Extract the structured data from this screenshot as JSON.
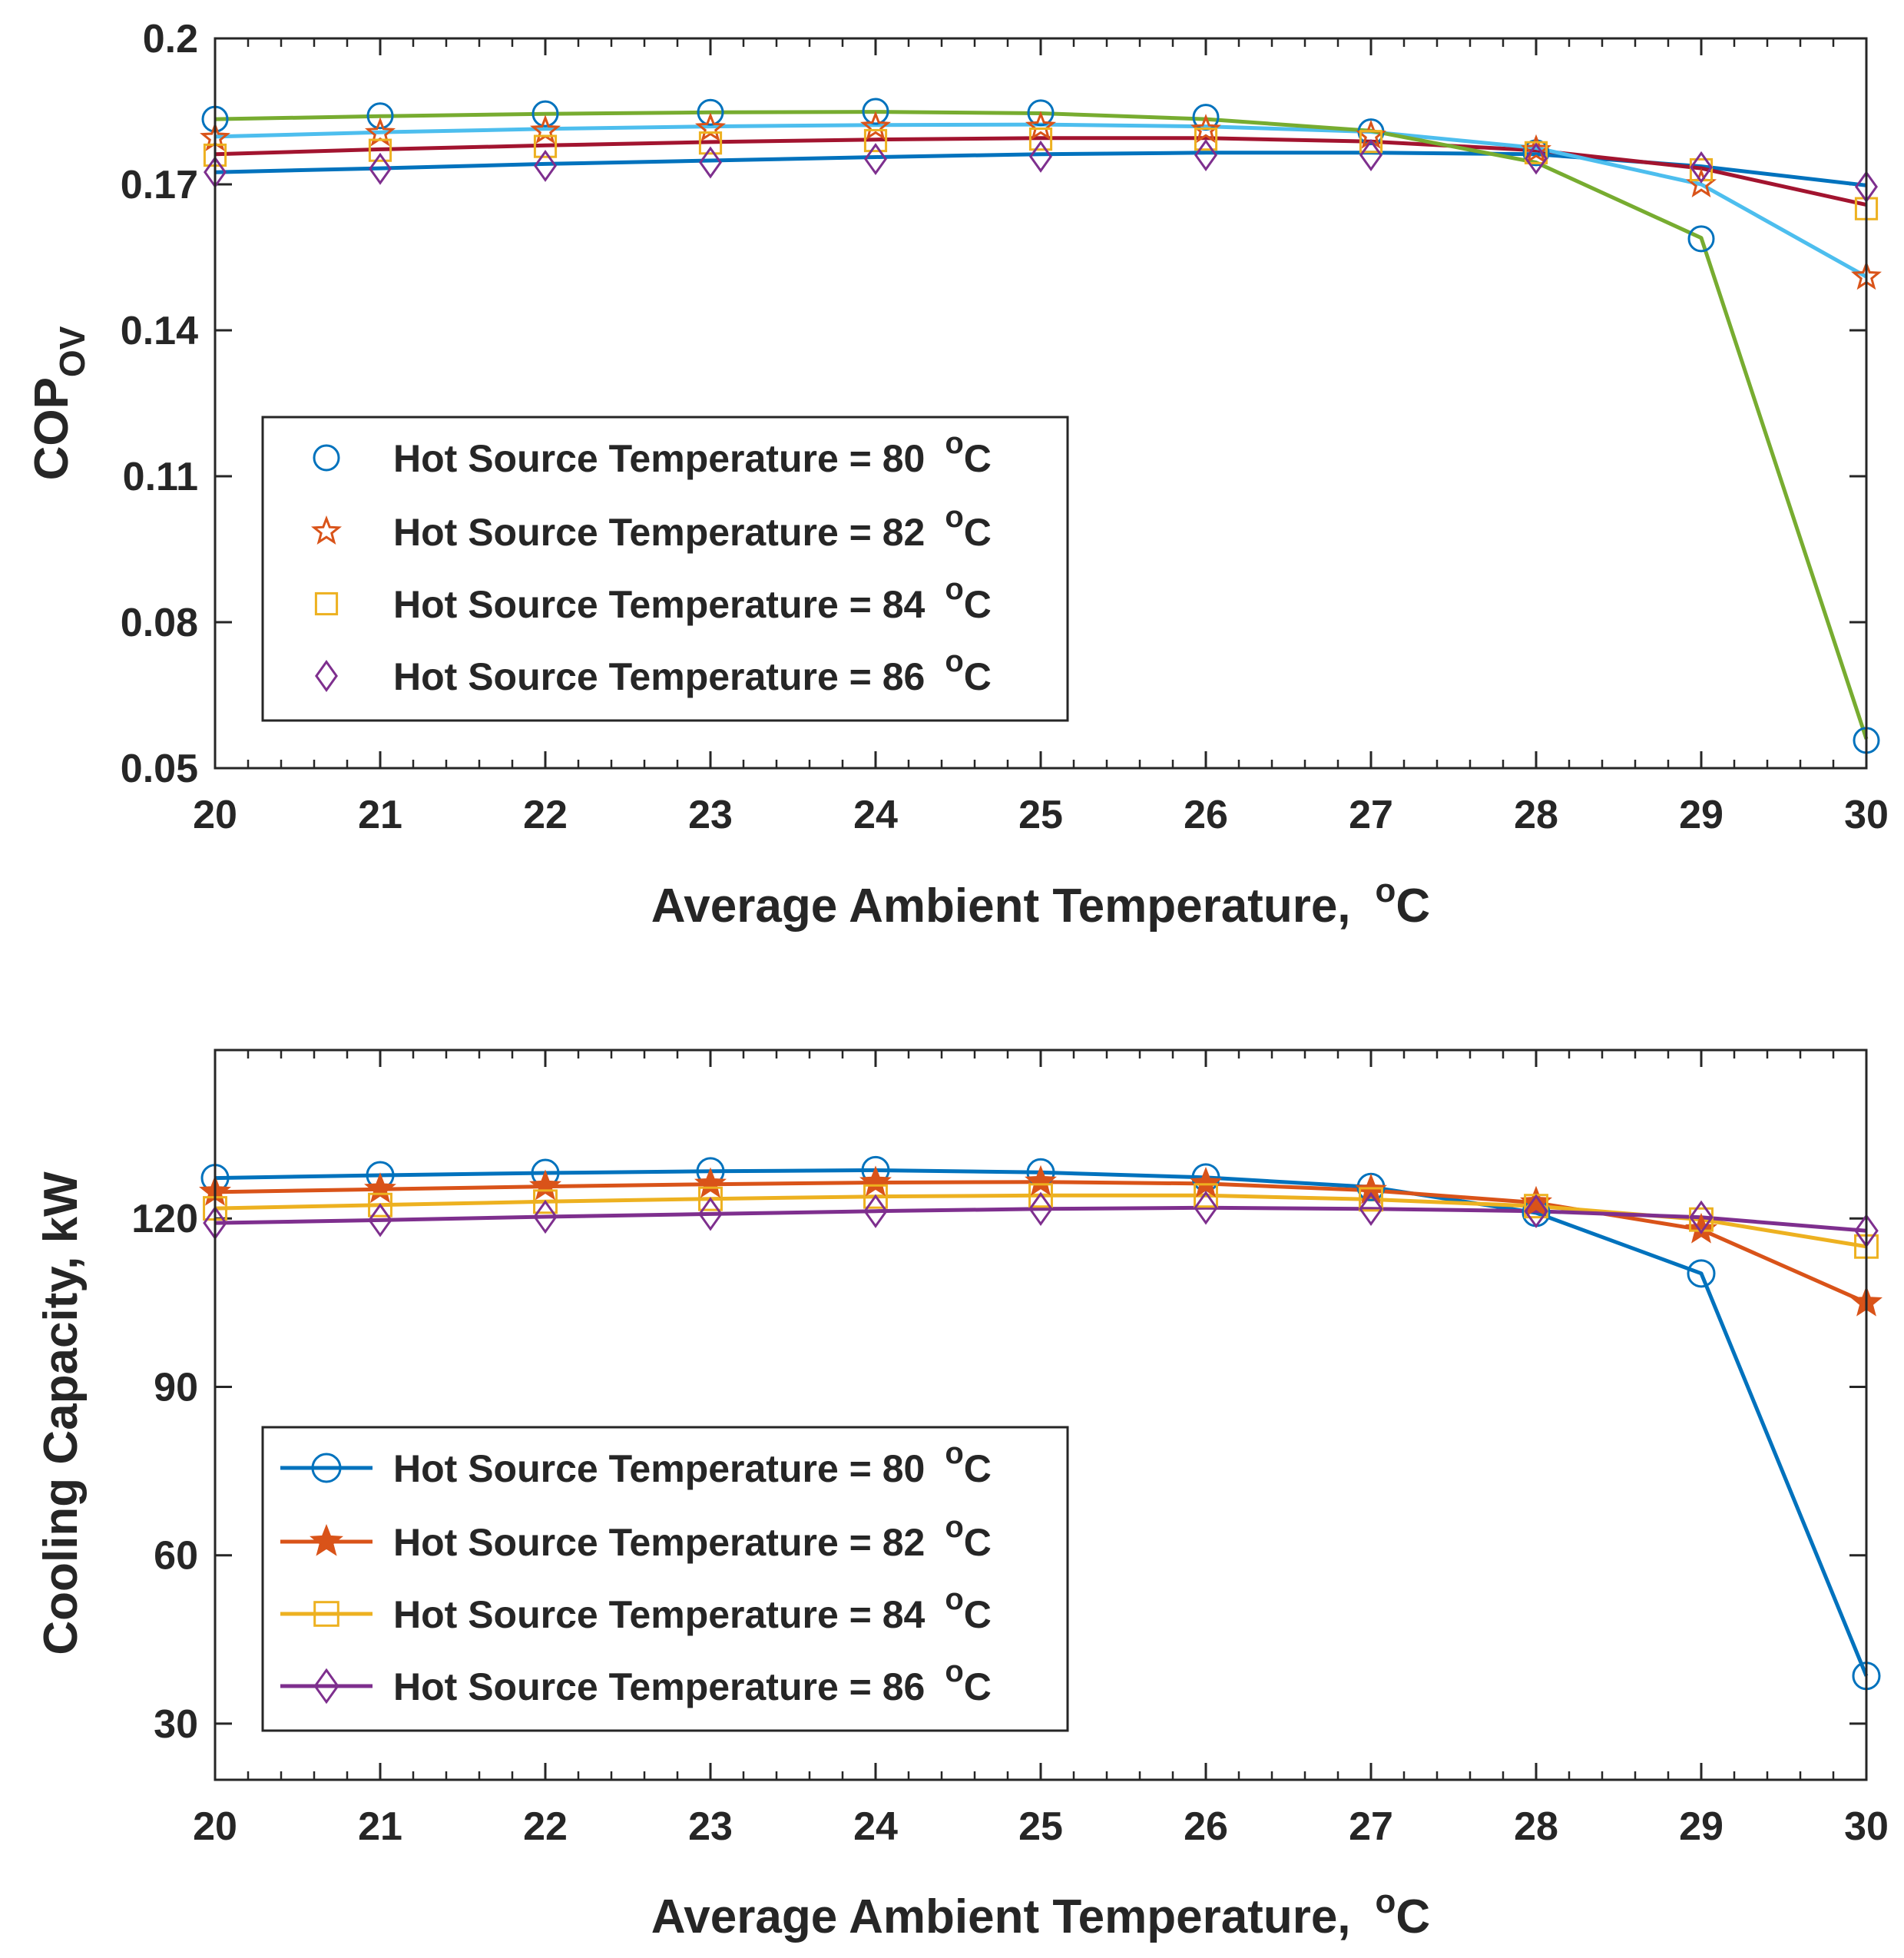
{
  "chart_data": [
    {
      "type": "line",
      "ylabel_main": "COP",
      "ylabel_sub": "OV",
      "xlabel_main": "Average Ambient Temperature,",
      "xlabel_sup": "o",
      "xlabel_unit": "C",
      "xlim": [
        20,
        30
      ],
      "ylim": [
        0.05,
        0.2
      ],
      "x_ticks": [
        "20",
        "21",
        "22",
        "23",
        "24",
        "25",
        "26",
        "27",
        "28",
        "29",
        "30"
      ],
      "y_ticks": [
        "0.05",
        "0.08",
        "0.11",
        "0.14",
        "0.17",
        "0.2"
      ],
      "y_tick_values": [
        0.05,
        0.08,
        0.11,
        0.14,
        0.17,
        0.2
      ],
      "x": [
        20,
        21,
        22,
        23,
        24,
        25,
        26,
        27,
        28,
        29,
        30
      ],
      "legend_placement": "lower-left",
      "legend_style": "markers-only",
      "series": [
        {
          "name_main": "Hot Source Temperature = 80",
          "name_sup": "o",
          "name_unit": "C",
          "marker": "circle",
          "color": "#0072BD",
          "values": [
            0.1834,
            0.1841,
            0.1845,
            0.1848,
            0.185,
            0.1847,
            0.1838,
            0.1808,
            0.1765,
            0.1588,
            0.0557
          ]
        },
        {
          "name_main": "Hot Source Temperature = 82",
          "name_sup": "o",
          "name_unit": "C",
          "marker": "star",
          "color": "#D95319",
          "values": [
            0.1795,
            0.1805,
            0.181,
            0.1815,
            0.1818,
            0.1818,
            0.1812,
            0.18,
            0.177,
            0.17,
            0.151
          ]
        },
        {
          "name_main": "Hot Source Temperature = 84",
          "name_sup": "o",
          "name_unit": "C",
          "marker": "square",
          "color": "#EDB120",
          "values": [
            0.176,
            0.177,
            0.1778,
            0.1785,
            0.179,
            0.1793,
            0.1793,
            0.1788,
            0.1765,
            0.173,
            0.165
          ]
        },
        {
          "name_main": "Hot Source Temperature = 86",
          "name_sup": "o",
          "name_unit": "C",
          "marker": "diamond",
          "color": "#7E2F8E",
          "values": [
            0.1725,
            0.1732,
            0.1738,
            0.1745,
            0.1752,
            0.1757,
            0.176,
            0.176,
            0.1753,
            0.1735,
            0.1695
          ]
        }
      ],
      "fit_lines": [
        {
          "color": "#0072BD",
          "values": [
            0.1725,
            0.1733,
            0.1742,
            0.1749,
            0.1756,
            0.1762,
            0.1765,
            0.1765,
            0.1762,
            0.1737,
            0.1698
          ]
        },
        {
          "color": "#A2142F",
          "values": [
            0.1762,
            0.1772,
            0.178,
            0.1787,
            0.1792,
            0.1795,
            0.1795,
            0.1788,
            0.177,
            0.1733,
            0.1658
          ]
        },
        {
          "color": "#4DBEEE",
          "values": [
            0.1798,
            0.1807,
            0.1814,
            0.1819,
            0.1822,
            0.1823,
            0.1819,
            0.1808,
            0.1775,
            0.17,
            0.151
          ]
        },
        {
          "color": "#77AC30",
          "values": [
            0.1834,
            0.184,
            0.1845,
            0.1848,
            0.1849,
            0.1846,
            0.1834,
            0.181,
            0.1745,
            0.159,
            0.056
          ]
        }
      ]
    },
    {
      "type": "line",
      "ylabel": "Cooling Capacity, kW",
      "xlabel_main": "Average Ambient Temperature,",
      "xlabel_sup": "o",
      "xlabel_unit": "C",
      "xlim": [
        20,
        30
      ],
      "ylim": [
        20,
        150
      ],
      "x_ticks": [
        "20",
        "21",
        "22",
        "23",
        "24",
        "25",
        "26",
        "27",
        "28",
        "29",
        "30"
      ],
      "y_ticks": [
        "30",
        "60",
        "90",
        "120"
      ],
      "y_tick_values": [
        30,
        60,
        90,
        120
      ],
      "x": [
        20,
        21,
        22,
        23,
        24,
        25,
        26,
        27,
        28,
        29,
        30
      ],
      "legend_placement": "lower-left",
      "legend_style": "line-and-marker",
      "series": [
        {
          "name_main": "Hot Source Temperature = 80",
          "name_sup": "o",
          "name_unit": "C",
          "marker": "circle",
          "color": "#0072BD",
          "values": [
            127.2,
            127.7,
            128.1,
            128.4,
            128.6,
            128.2,
            127.3,
            125.6,
            121.0,
            110.2,
            38.5
          ]
        },
        {
          "name_main": "Hot Source Temperature = 82",
          "name_sup": "o",
          "name_unit": "C",
          "marker": "star",
          "color": "#D95319",
          "values": [
            124.7,
            125.2,
            125.7,
            126.1,
            126.4,
            126.5,
            126.2,
            125.0,
            122.8,
            118.0,
            105.0
          ]
        },
        {
          "name_main": "Hot Source Temperature = 84",
          "name_sup": "o",
          "name_unit": "C",
          "marker": "square",
          "color": "#EDB120",
          "values": [
            121.8,
            122.4,
            123.0,
            123.5,
            123.9,
            124.1,
            124.1,
            123.4,
            122.2,
            119.8,
            115.0
          ]
        },
        {
          "name_main": "Hot Source Temperature = 86",
          "name_sup": "o",
          "name_unit": "C",
          "marker": "diamond",
          "color": "#7E2F8E",
          "values": [
            119.2,
            119.7,
            120.3,
            120.8,
            121.3,
            121.7,
            121.9,
            121.7,
            121.3,
            120.2,
            117.8
          ]
        }
      ]
    }
  ]
}
